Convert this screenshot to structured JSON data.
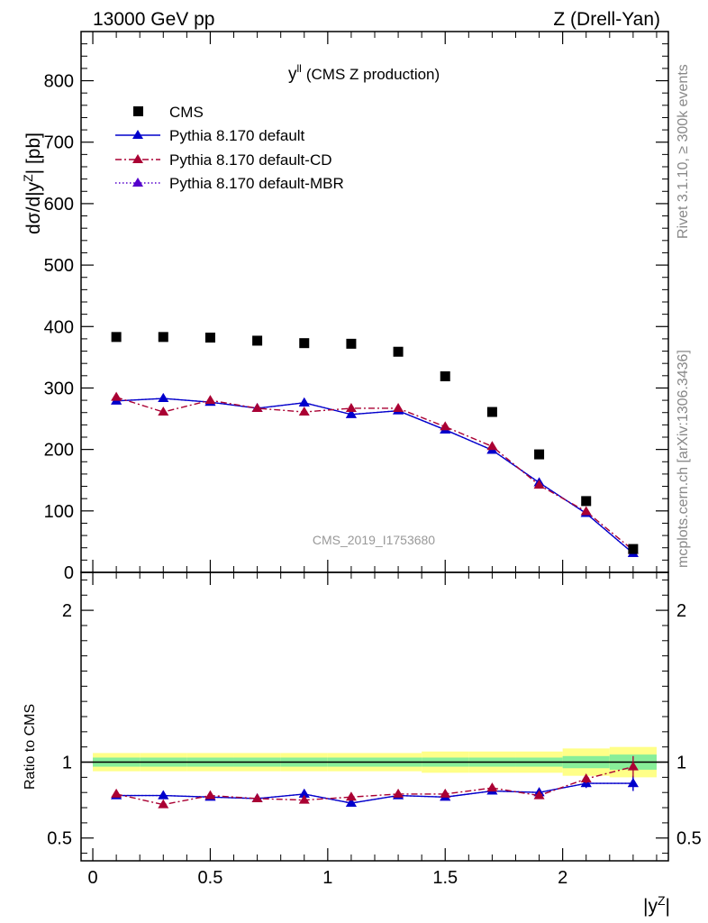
{
  "header": {
    "left": "13000 GeV pp",
    "right": "Z (Drell-Yan)"
  },
  "side_labels": {
    "rivet": "Rivet 3.1.10, ≥ 300k events",
    "mcplots": "mcplots.cern.ch [arXiv:1306.3436]"
  },
  "chart_data": {
    "type": "scatter",
    "title": "yˡˡ (CMS Z production)",
    "title_main": "y",
    "title_sup": "ll",
    "title_rest": "(CMS Z production)",
    "watermark": "CMS_2019_I1753680",
    "xlabel": "|y",
    "xlabel_sup": "Z",
    "xlabel_end": "|",
    "ylabel": "dσ/d|y",
    "ylabel_sup": "Z",
    "ylabel_end": "| [pb]",
    "xlim": [
      -0.05,
      2.45
    ],
    "ylim": [
      0,
      880
    ],
    "x_ticks": [
      0,
      0.5,
      1,
      1.5,
      2
    ],
    "x_tick_labels": [
      "0",
      "0.5",
      "1",
      "1.5",
      "2"
    ],
    "y_ticks": [
      0,
      100,
      200,
      300,
      400,
      500,
      600,
      700,
      800
    ],
    "y_tick_labels": [
      "0",
      "100",
      "200",
      "300",
      "400",
      "500",
      "600",
      "700",
      "800"
    ],
    "x": [
      0.1,
      0.3,
      0.5,
      0.7,
      0.9,
      1.1,
      1.3,
      1.5,
      1.7,
      1.9,
      2.1,
      2.3
    ],
    "series": [
      {
        "name": "CMS",
        "color": "#000000",
        "marker": "square",
        "values": [
          383,
          383,
          382,
          377,
          373,
          372,
          359,
          319,
          261,
          192,
          116,
          38
        ]
      },
      {
        "name": "Pythia 8.170 default",
        "color": "#0000cc",
        "marker": "triangle",
        "line": "solid",
        "values": [
          279,
          283,
          277,
          267,
          276,
          257,
          263,
          232,
          199,
          146,
          96,
          31
        ],
        "errors": [
          5,
          5,
          5,
          5,
          5,
          5,
          4,
          4,
          4,
          3,
          3,
          3
        ]
      },
      {
        "name": "Pythia 8.170 default-CD",
        "color": "#aa0033",
        "marker": "triangle",
        "line": "dashdot",
        "values": [
          285,
          261,
          280,
          267,
          261,
          267,
          267,
          237,
          205,
          142,
          99,
          36
        ],
        "errors": [
          5,
          5,
          5,
          5,
          5,
          5,
          4,
          4,
          4,
          3,
          3,
          3
        ]
      },
      {
        "name": "Pythia 8.170 default-MBR",
        "color": "#5500cc",
        "marker": "triangle",
        "line": "dotted",
        "values": [
          279,
          283,
          277,
          267,
          276,
          257,
          263,
          232,
          199,
          146,
          96,
          31
        ],
        "errors": [
          5,
          5,
          5,
          5,
          5,
          5,
          4,
          4,
          4,
          3,
          3,
          3
        ]
      }
    ],
    "ratio_panel": {
      "ylabel": "Ratio to CMS",
      "ylim": [
        0.35,
        2.25
      ],
      "y_ticks": [
        0.5,
        1,
        2
      ],
      "y_tick_labels": [
        "0.5",
        "1",
        "2"
      ],
      "band_inner": [
        0.03,
        0.03,
        0.03,
        0.03,
        0.03,
        0.03,
        0.03,
        0.03,
        0.03,
        0.03,
        0.04,
        0.05
      ],
      "band_outer": [
        0.06,
        0.06,
        0.06,
        0.06,
        0.06,
        0.06,
        0.06,
        0.07,
        0.07,
        0.07,
        0.09,
        0.1
      ],
      "series": [
        {
          "name": "Pythia 8.170 default",
          "values": [
            0.78,
            0.78,
            0.77,
            0.76,
            0.79,
            0.73,
            0.78,
            0.77,
            0.81,
            0.8,
            0.86,
            0.86
          ],
          "errors": [
            0.02,
            0.02,
            0.02,
            0.02,
            0.02,
            0.02,
            0.02,
            0.02,
            0.02,
            0.02,
            0.03,
            0.05
          ]
        },
        {
          "name": "Pythia 8.170 default-CD",
          "values": [
            0.79,
            0.72,
            0.78,
            0.76,
            0.75,
            0.77,
            0.79,
            0.79,
            0.83,
            0.78,
            0.89,
            0.97
          ],
          "errors": [
            0.02,
            0.02,
            0.02,
            0.02,
            0.02,
            0.02,
            0.02,
            0.02,
            0.02,
            0.02,
            0.03,
            0.07
          ]
        },
        {
          "name": "Pythia 8.170 default-MBR",
          "values": [
            0.78,
            0.78,
            0.77,
            0.76,
            0.79,
            0.73,
            0.78,
            0.77,
            0.81,
            0.8,
            0.86,
            0.86
          ],
          "errors": [
            0.02,
            0.02,
            0.02,
            0.02,
            0.02,
            0.02,
            0.02,
            0.02,
            0.02,
            0.02,
            0.03,
            0.05
          ]
        }
      ]
    }
  }
}
